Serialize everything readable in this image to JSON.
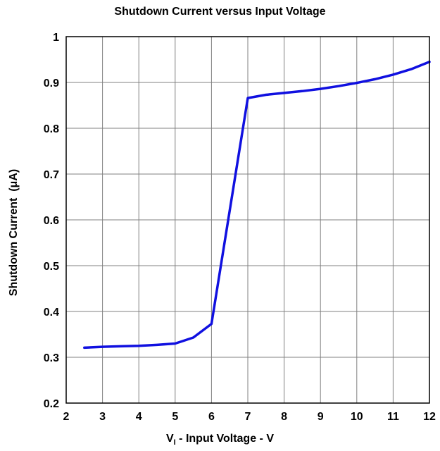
{
  "chart_data": {
    "type": "line",
    "title": "Shutdown Current versus Input Voltage",
    "xlabel_main": "V",
    "xlabel_sub": "I",
    "xlabel_rest": " - Input Voltage - V",
    "ylabel": "Shutdown Current  (μA)",
    "xlim": [
      2,
      12
    ],
    "ylim": [
      0.2,
      1.0
    ],
    "xticks": [
      2,
      3,
      4,
      5,
      6,
      7,
      8,
      9,
      10,
      11,
      12
    ],
    "yticks": [
      0.2,
      0.3,
      0.4,
      0.5,
      0.6,
      0.7,
      0.8,
      0.9,
      1.0
    ],
    "ytick_labels": [
      "0.2",
      "0.3",
      "0.4",
      "0.5",
      "0.6",
      "0.7",
      "0.8",
      "0.9",
      "1"
    ],
    "grid": true,
    "series": [
      {
        "color": "#1010e0",
        "x": [
          2.5,
          3,
          3.5,
          4,
          4.5,
          5,
          5.5,
          6,
          7,
          7.5,
          8,
          8.5,
          9,
          9.5,
          10,
          10.5,
          11,
          11.5,
          12
        ],
        "y": [
          0.321,
          0.323,
          0.324,
          0.325,
          0.327,
          0.33,
          0.343,
          0.373,
          0.866,
          0.873,
          0.877,
          0.881,
          0.886,
          0.892,
          0.899,
          0.907,
          0.917,
          0.929,
          0.945
        ]
      }
    ]
  }
}
